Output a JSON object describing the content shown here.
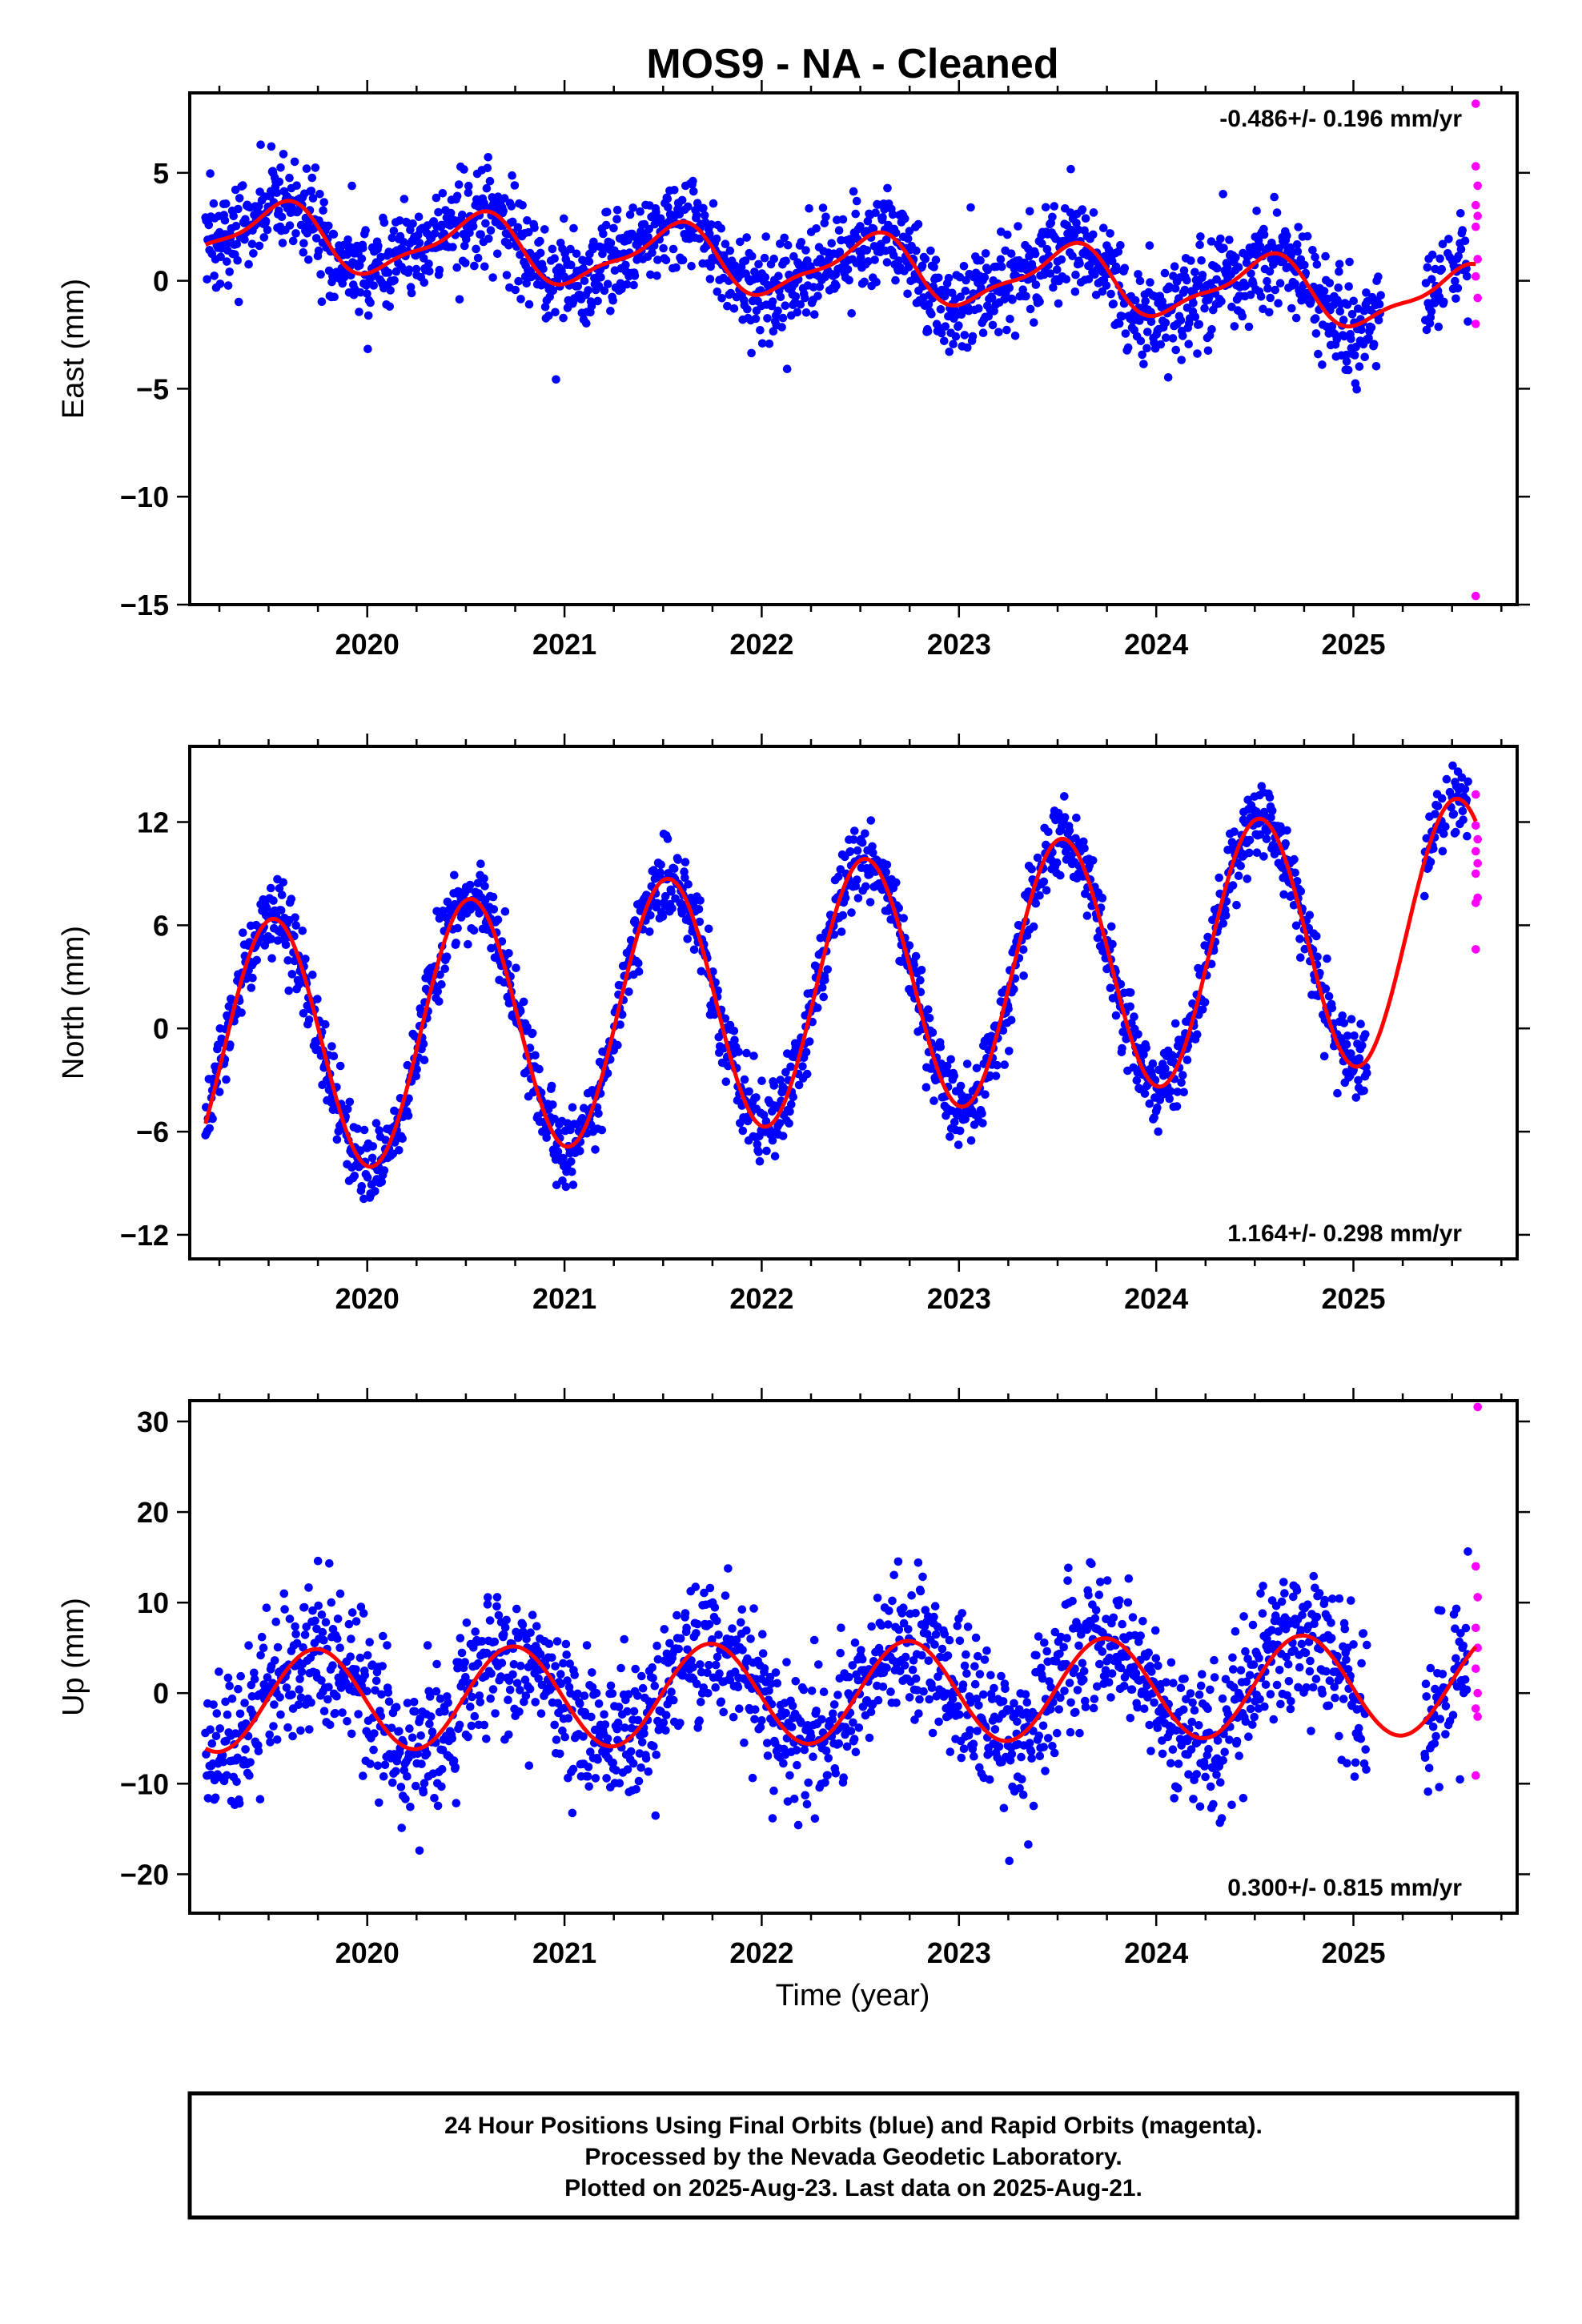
{
  "title": "MOS9  - NA - Cleaned",
  "xlabel": "Time (year)",
  "colors": {
    "final": "#0000ff",
    "rapid": "#ff00ff",
    "model": "#ff0000",
    "frame": "#000000"
  },
  "footer": {
    "line1": "24 Hour Positions Using Final Orbits (blue) and Rapid Orbits (magenta).",
    "line2": "Processed by the Nevada Geodetic Laboratory.",
    "line3": "Plotted on 2025-Aug-23. Last data on 2025-Aug-21."
  },
  "chart_data": [
    {
      "type": "scatter",
      "component": "east",
      "ylabel": "East (mm)",
      "rate": "-0.486+/- 0.196 mm/yr",
      "rate_position": "top-right",
      "xlim": [
        2019.1,
        2025.83
      ],
      "ylim": [
        -15,
        8.7
      ],
      "x_ticks": [
        2020,
        2021,
        2022,
        2023,
        2024,
        2025
      ],
      "x_tick_labels": [
        "2020",
        "2021",
        "2022",
        "2023",
        "2024",
        "2025"
      ],
      "y_ticks": [
        5,
        0,
        -5,
        -10,
        -15
      ],
      "y_tick_labels": [
        "5",
        "0",
        "−5",
        "−10",
        "−15"
      ],
      "grid": false,
      "series": [
        {
          "name": "Final Orbits (blue)",
          "kind": "points",
          "model": {
            "offset": 2.2,
            "rate": -0.486,
            "annual_amp": 1.4,
            "annual_phase": 2019.55,
            "semi_amp": 0.45,
            "semi_phase": 2019.65
          },
          "noise_sd": 1.15,
          "x_range": [
            2019.18,
            2025.58
          ],
          "gaps": [
            [
              2025.14,
              2025.36
            ]
          ],
          "count": 1900
        },
        {
          "name": "Rapid Orbits (magenta)",
          "kind": "points",
          "points": [
            [
              2025.62,
              8.2
            ],
            [
              2025.62,
              5.3
            ],
            [
              2025.63,
              4.4
            ],
            [
              2025.62,
              3.5
            ],
            [
              2025.63,
              3.0
            ],
            [
              2025.62,
              2.5
            ],
            [
              2025.63,
              1.0
            ],
            [
              2025.62,
              0.2
            ],
            [
              2025.63,
              -0.8
            ],
            [
              2025.62,
              -2.0
            ],
            [
              2025.62,
              -14.6
            ]
          ]
        },
        {
          "name": "Model fit",
          "kind": "line",
          "x_range": [
            2019.18,
            2025.62
          ]
        }
      ]
    },
    {
      "type": "scatter",
      "component": "north",
      "ylabel": "North (mm)",
      "rate": "1.164+/- 0.298 mm/yr",
      "rate_position": "bottom-right",
      "xlim": [
        2019.1,
        2025.83
      ],
      "ylim": [
        -13.4,
        16.4
      ],
      "x_ticks": [
        2020,
        2021,
        2022,
        2023,
        2024,
        2025
      ],
      "x_tick_labels": [
        "2020",
        "2021",
        "2022",
        "2023",
        "2024",
        "2025"
      ],
      "y_ticks": [
        12,
        6,
        0,
        -6,
        -12
      ],
      "y_tick_labels": [
        "12",
        "6",
        "0",
        "−6",
        "−12"
      ],
      "grid": false,
      "series": [
        {
          "name": "Final Orbits (blue)",
          "kind": "points",
          "model": {
            "offset": -1.5,
            "rate": 1.164,
            "annual_amp": 7.5,
            "annual_phase": 2019.52,
            "semi_amp": 0.0,
            "semi_phase": 2019.5
          },
          "noise_sd": 1.1,
          "x_range": [
            2019.18,
            2025.58
          ],
          "gaps": [
            [
              2025.07,
              2025.36
            ]
          ],
          "count": 1900
        },
        {
          "name": "Rapid Orbits (magenta)",
          "kind": "points",
          "points": [
            [
              2025.62,
              13.6
            ],
            [
              2025.62,
              11.8
            ],
            [
              2025.63,
              11.0
            ],
            [
              2025.62,
              10.3
            ],
            [
              2025.63,
              9.6
            ],
            [
              2025.62,
              9.0
            ],
            [
              2025.63,
              7.6
            ],
            [
              2025.62,
              7.3
            ],
            [
              2025.62,
              4.6
            ]
          ]
        },
        {
          "name": "Model fit",
          "kind": "line",
          "x_range": [
            2019.18,
            2025.62
          ]
        }
      ]
    },
    {
      "type": "scatter",
      "component": "up",
      "ylabel": "Up (mm)",
      "rate": "0.300+/- 0.815 mm/yr",
      "rate_position": "bottom-right",
      "xlim": [
        2019.1,
        2025.83
      ],
      "ylim": [
        -24.3,
        32.3
      ],
      "x_ticks": [
        2020,
        2021,
        2022,
        2023,
        2024,
        2025
      ],
      "x_tick_labels": [
        "2020",
        "2021",
        "2022",
        "2023",
        "2024",
        "2025"
      ],
      "y_ticks": [
        30,
        20,
        10,
        0,
        -10,
        -20
      ],
      "y_tick_labels": [
        "30",
        "20",
        "10",
        "0",
        "−10",
        "−20"
      ],
      "grid": false,
      "series": [
        {
          "name": "Final Orbits (blue)",
          "kind": "points",
          "model": {
            "offset": -0.9,
            "rate": 0.3,
            "annual_amp": 5.6,
            "annual_phase": 2019.74,
            "semi_amp": 0.0,
            "semi_phase": 2019.5
          },
          "noise_sd": 4.0,
          "x_range": [
            2019.18,
            2025.58
          ],
          "gaps": [
            [
              2025.07,
              2025.36
            ]
          ],
          "count": 1900
        },
        {
          "name": "Rapid Orbits (magenta)",
          "kind": "points",
          "points": [
            [
              2025.63,
              31.6
            ],
            [
              2025.62,
              14.0
            ],
            [
              2025.63,
              10.6
            ],
            [
              2025.62,
              7.2
            ],
            [
              2025.63,
              5.0
            ],
            [
              2025.62,
              2.7
            ],
            [
              2025.63,
              0.0
            ],
            [
              2025.62,
              -1.7
            ],
            [
              2025.63,
              -2.6
            ],
            [
              2025.62,
              -9.1
            ]
          ]
        },
        {
          "name": "Model fit",
          "kind": "line",
          "x_range": [
            2019.18,
            2025.62
          ]
        }
      ]
    }
  ]
}
